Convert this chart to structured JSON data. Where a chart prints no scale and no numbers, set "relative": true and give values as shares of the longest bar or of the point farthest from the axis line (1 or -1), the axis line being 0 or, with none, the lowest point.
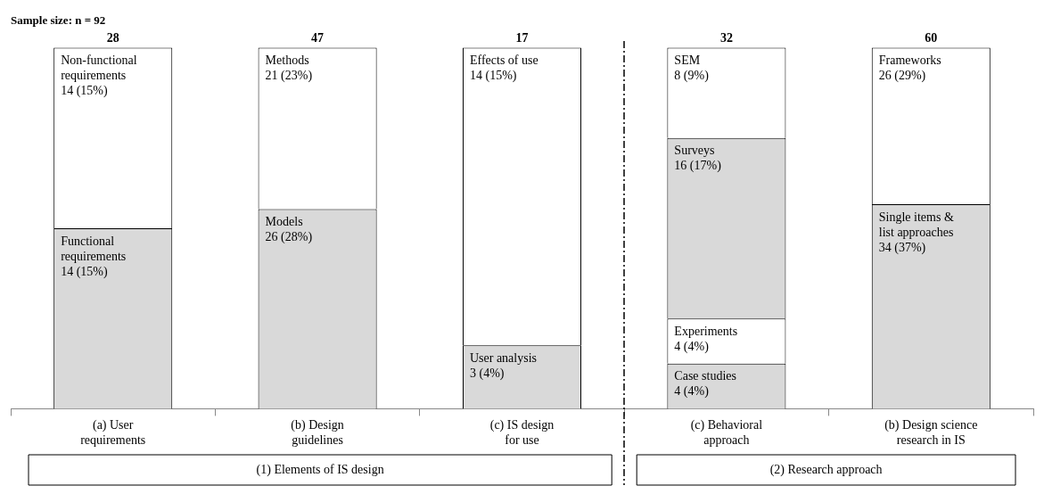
{
  "chart_data": {
    "type": "bar",
    "title": "Sample size: n = 92",
    "stacked": true,
    "relative": true,
    "categories": [
      "(a) User\nrequirements",
      "(b) Design\nguidelines",
      "(c) IS design\nfor use",
      "(c) Behavioral\napproach",
      "(b) Design science\nresearch in IS"
    ],
    "series": [
      {
        "color": "#d9d9d9",
        "values": [
          0.5,
          0.553,
          0.176,
          0.125,
          0.567
        ]
      },
      {
        "color": "#ffffff",
        "values": [
          0.5,
          0.447,
          0.824,
          0.125,
          0.433
        ]
      },
      {
        "color": "#d9d9d9",
        "values": [
          null,
          null,
          null,
          0.5,
          null
        ]
      },
      {
        "color": "#ffffff",
        "values": [
          null,
          null,
          null,
          0.25,
          null
        ]
      }
    ],
    "annotations": [
      "(1) Elements of IS design",
      "(2) Research approach",
      {
        "text": "28",
        "x": "(a) User\nrequirements",
        "y": 1
      },
      {
        "text": "47",
        "x": "(b) Design\nguidelines",
        "y": 1
      },
      {
        "text": "17",
        "x": "(c) IS design\nfor use",
        "y": 1
      },
      {
        "text": "32",
        "x": "(c) Behavioral\napproach",
        "y": 1
      },
      {
        "text": "60",
        "x": "(b) Design science\nresearch in IS",
        "y": 1
      },
      {
        "text": "Functional\nrequirements\n14 (15%)",
        "x": "(a) User\nrequirements",
        "y": 0.5
      },
      {
        "text": "Non-functional\nrequirements\n14 (15%)",
        "x": "(a) User\nrequirements",
        "y": 1
      },
      {
        "text": "Models\n26 (28%)",
        "x": "(b) Design\nguidelines",
        "y": 0.553
      },
      {
        "text": "Methods\n21 (23%)",
        "x": "(b) Design\nguidelines",
        "y": 1
      },
      {
        "text": "User analysis\n3 (4%)",
        "x": "(c) IS design\nfor use",
        "y": 0.176
      },
      {
        "text": "Effects of use\n14 (15%)",
        "x": "(c) IS design\nfor use",
        "y": 1
      },
      {
        "text": "Case studies\n4 (4%)",
        "x": "(c) Behavioral\napproach",
        "y": 0.125
      },
      {
        "text": "Experiments\n4 (4%)",
        "x": "(c) Behavioral\napproach",
        "y": 0.25
      },
      {
        "text": "Surveys\n16 (17%)",
        "x": "(c) Behavioral\napproach",
        "y": 0.75
      },
      {
        "text": "SEM\n8 (9%)",
        "x": "(c) Behavioral\napproach",
        "y": 1
      },
      {
        "text": "Single items &\nlist approaches\n34 (37%)",
        "x": "(b) Design science\nresearch in IS",
        "y": 0.567
      },
      {
        "text": "Frameworks\n26 (29%)",
        "x": "(b) Design science\nresearch in IS",
        "y": 1
      }
    ]
  }
}
